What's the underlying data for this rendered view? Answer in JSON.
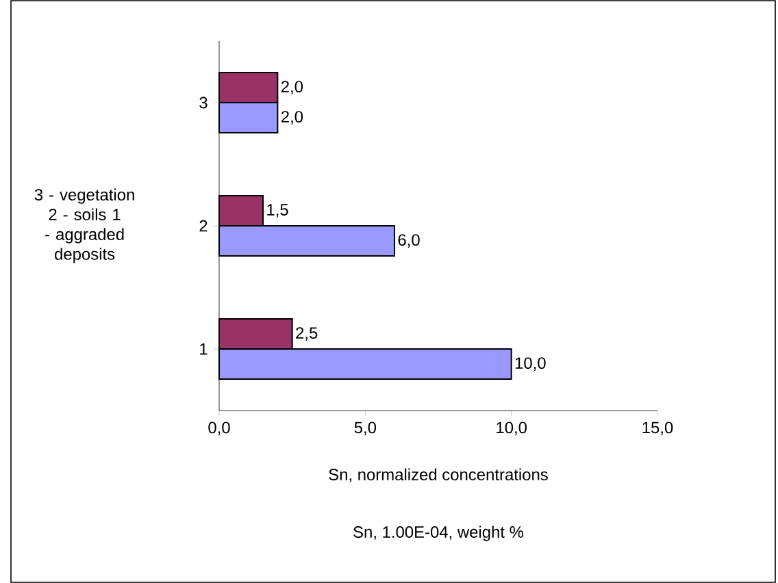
{
  "chart_data": {
    "type": "bar",
    "orientation": "horizontal",
    "ylabel": "3 - vegetation 2 - soils 1 - aggraded deposits",
    "xlabel": "Sn, normalized concentrations",
    "annotations": [
      "Sn, 1.00E-04, weight %"
    ],
    "categories": [
      "3",
      "2",
      "1"
    ],
    "series": [
      {
        "color": "#9999ff",
        "values": [
          2.0,
          6.0,
          10.0
        ],
        "value_labels": [
          "2,0",
          "6,0",
          "10,0"
        ]
      },
      {
        "color": "#993366",
        "values": [
          2.0,
          1.5,
          2.5
        ],
        "value_labels": [
          "2,0",
          "1,5",
          "2,5"
        ]
      }
    ],
    "xlim": [
      0,
      15
    ],
    "xticks": [
      {
        "value": 0,
        "label": "0,0"
      },
      {
        "value": 5,
        "label": "5,0"
      },
      {
        "value": 10,
        "label": "10,0"
      },
      {
        "value": 15,
        "label": "15,0"
      }
    ],
    "grid": false
  }
}
